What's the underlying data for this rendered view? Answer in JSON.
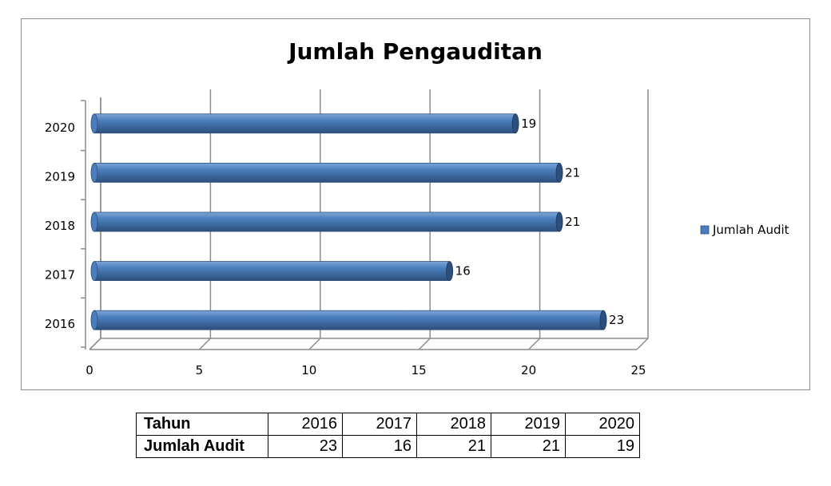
{
  "chart_data": {
    "type": "bar",
    "orientation": "horizontal",
    "style": "3d-cylinder",
    "title": "Jumlah Pengauditan",
    "categories": [
      "2016",
      "2017",
      "2018",
      "2019",
      "2020"
    ],
    "series": [
      {
        "name": "Jumlah Audit",
        "values": [
          23,
          16,
          21,
          21,
          19
        ]
      }
    ],
    "xlim": [
      0,
      25
    ],
    "xticks": [
      "0",
      "5",
      "10",
      "15",
      "20",
      "25"
    ],
    "grid": true,
    "legend": "right",
    "colors": {
      "bar": "#4a7ebb",
      "bar_dark": "#2c4f7c",
      "bar_light": "#7ea6d8",
      "grid": "#8c8c8c"
    }
  },
  "table": {
    "rows": [
      {
        "header": "Tahun",
        "values": [
          "2016",
          "2017",
          "2018",
          "2019",
          "2020"
        ]
      },
      {
        "header": "Jumlah Audit",
        "values": [
          "23",
          "16",
          "21",
          "21",
          "19"
        ]
      }
    ]
  }
}
